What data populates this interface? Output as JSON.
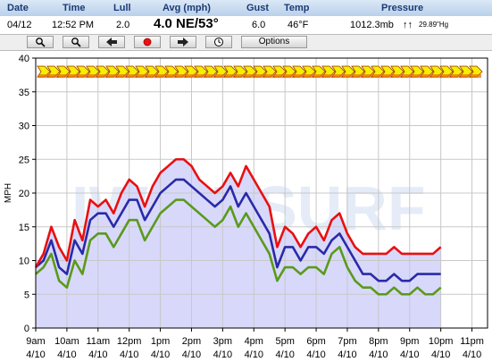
{
  "header": {
    "labels": {
      "date": "Date",
      "time": "Time",
      "lull": "Lull",
      "avg": "Avg (mph)",
      "gust": "Gust",
      "temp": "Temp",
      "pressure": "Pressure"
    },
    "values": {
      "date": "04/12",
      "time": "12:52 PM",
      "lull": "2.0",
      "avg": "4.0 NE/53°",
      "gust": "6.0",
      "temp": "46°F",
      "pressure_mb": "1012.3mb",
      "pressure_arrows": "↑↑",
      "pressure_hg": "29.89\"Hg"
    }
  },
  "toolbar": {
    "buttons": [
      {
        "name": "zoom-in-button",
        "icon": "zoom-in-icon"
      },
      {
        "name": "zoom-out-button",
        "icon": "zoom-out-icon"
      },
      {
        "name": "back-button",
        "icon": "arrow-left-icon"
      },
      {
        "name": "live-button",
        "icon": "red-dot-icon"
      },
      {
        "name": "forward-button",
        "icon": "arrow-right-icon"
      },
      {
        "name": "history-button",
        "icon": "clock-icon"
      }
    ],
    "options_label": "Options"
  },
  "colors": {
    "lull": "#5a9a1a",
    "avg": "#2a2aa8",
    "gust": "#e81010",
    "fill": "#d8d8fb",
    "arrow_fill": "#f5ef00",
    "arrow_stroke": "#a84a00"
  },
  "watermark": "IWINDSURF",
  "chart_data": {
    "type": "line",
    "ylabel": "MPH",
    "ylim": [
      0,
      40
    ],
    "yticks": [
      0,
      5,
      10,
      15,
      20,
      25,
      30,
      35,
      40
    ],
    "xlim": [
      0,
      14.5
    ],
    "xtick_labels": [
      {
        "time": "9am",
        "date": "4/10"
      },
      {
        "time": "10am",
        "date": "4/10"
      },
      {
        "time": "11am",
        "date": "4/10"
      },
      {
        "time": "12pm",
        "date": "4/10"
      },
      {
        "time": "1pm",
        "date": "4/10"
      },
      {
        "time": "2pm",
        "date": "4/10"
      },
      {
        "time": "3pm",
        "date": "4/10"
      },
      {
        "time": "4pm",
        "date": "4/10"
      },
      {
        "time": "5pm",
        "date": "4/10"
      },
      {
        "time": "6pm",
        "date": "4/10"
      },
      {
        "time": "7pm",
        "date": "4/10"
      },
      {
        "time": "8pm",
        "date": "4/10"
      },
      {
        "time": "9pm",
        "date": "4/10"
      },
      {
        "time": "10pm",
        "date": "4/10"
      },
      {
        "time": "11pm",
        "date": "4/10"
      }
    ],
    "x_hours": [
      0,
      0.25,
      0.5,
      0.75,
      1.0,
      1.25,
      1.5,
      1.75,
      2.0,
      2.25,
      2.5,
      2.75,
      3.0,
      3.25,
      3.5,
      3.75,
      4.0,
      4.25,
      4.5,
      4.75,
      5.0,
      5.25,
      5.5,
      5.75,
      6.0,
      6.25,
      6.5,
      6.75,
      7.0,
      7.25,
      7.5,
      7.75,
      8.0,
      8.25,
      8.5,
      8.75,
      9.0,
      9.25,
      9.5,
      9.75,
      10.0,
      10.25,
      10.5,
      10.75,
      11.0,
      11.25,
      11.5,
      11.75,
      12.0,
      12.25,
      12.5,
      12.75,
      13.0,
      13.25,
      13.5,
      13.75,
      14.0,
      14.25,
      14.5
    ],
    "series": [
      {
        "name": "Gust",
        "key": "gust",
        "values": [
          9,
          11,
          15,
          12,
          10,
          16,
          13,
          19,
          18,
          19,
          17,
          20,
          22,
          21,
          18,
          21,
          23,
          24,
          25,
          25,
          24,
          22,
          21,
          20,
          21,
          23,
          21,
          24,
          22,
          20,
          18,
          12,
          15,
          14,
          12,
          14,
          15,
          13,
          16,
          17,
          14,
          12,
          11,
          11,
          11,
          11,
          12,
          11,
          11,
          11,
          11,
          11,
          12
        ]
      },
      {
        "name": "Avg",
        "key": "avg",
        "values": [
          9,
          10,
          13,
          9,
          8,
          13,
          11,
          16,
          17,
          17,
          15,
          17,
          19,
          19,
          16,
          18,
          20,
          21,
          22,
          22,
          21,
          20,
          19,
          18,
          19,
          21,
          18,
          20,
          18,
          16,
          14,
          9,
          12,
          12,
          10,
          12,
          12,
          11,
          13,
          14,
          12,
          10,
          8,
          8,
          7,
          7,
          8,
          7,
          7,
          8,
          8,
          8,
          8
        ]
      },
      {
        "name": "Lull",
        "key": "lull",
        "values": [
          8,
          9,
          11,
          7,
          6,
          10,
          8,
          13,
          14,
          14,
          12,
          14,
          16,
          16,
          13,
          15,
          17,
          18,
          19,
          19,
          18,
          17,
          16,
          15,
          16,
          18,
          15,
          17,
          15,
          13,
          11,
          7,
          9,
          9,
          8,
          9,
          9,
          8,
          11,
          12,
          9,
          7,
          6,
          6,
          5,
          5,
          6,
          5,
          5,
          6,
          5,
          5,
          6
        ]
      }
    ],
    "series_x": [
      0,
      0.25,
      0.5,
      0.75,
      1.0,
      1.25,
      1.5,
      1.75,
      2.0,
      2.25,
      2.5,
      2.75,
      3.0,
      3.25,
      3.5,
      3.75,
      4.0,
      4.25,
      4.5,
      4.75,
      5.0,
      5.25,
      5.5,
      5.75,
      6.0,
      6.25,
      6.5,
      6.75,
      7.0,
      7.25,
      7.5,
      7.75,
      8.0,
      8.25,
      8.5,
      8.75,
      9.0,
      9.25,
      9.5,
      9.75,
      10.0,
      10.25,
      10.5,
      10.75,
      11.0,
      11.25,
      11.5,
      11.75,
      12.0,
      12.25,
      12.5,
      12.75,
      13.0
    ],
    "direction_arrows": {
      "direction": "NE",
      "y_range": [
        36,
        40
      ]
    }
  }
}
